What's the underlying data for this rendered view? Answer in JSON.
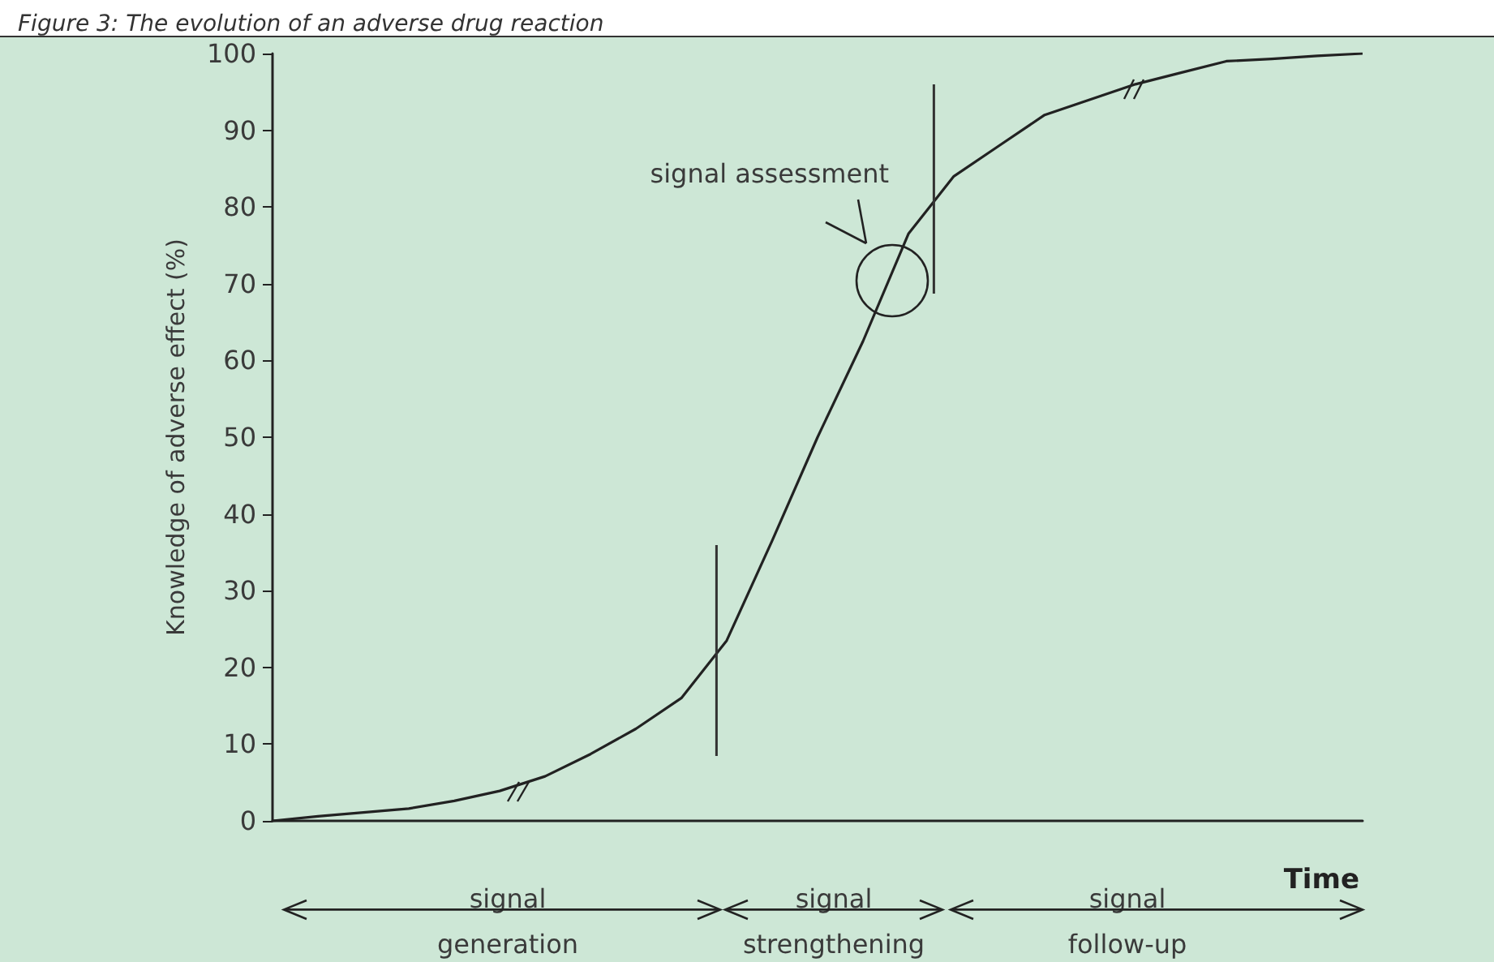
{
  "chart_data": {
    "type": "line",
    "title": "Figure 3: The evolution of an adverse drug reaction",
    "xlabel": "Time",
    "ylabel": "Knowledge of adverse effect (%)",
    "annotations": [
      "signal assessment",
      "signal\ngeneration",
      "signal\nstrengthening",
      "signal\nfollow-up"
    ],
    "categories": [
      null,
      null,
      null,
      null,
      null,
      null,
      null,
      null,
      null,
      null,
      null,
      null,
      null,
      null,
      null,
      null,
      null,
      null,
      null,
      null,
      null,
      null,
      null,
      null,
      null
    ],
    "series": [
      {
        "color": "#222222",
        "values": [
          0,
          0.6,
          1.1,
          1.6,
          2.6,
          3.9,
          5.8,
          8.7,
          12,
          16,
          23.5,
          36.5,
          50,
          62.5,
          76.5,
          84,
          88,
          92,
          94,
          96,
          97.5,
          99,
          99.3,
          99.7,
          100
        ]
      }
    ],
    "ylim": [
      0,
      100
    ],
    "yticks": [
      0,
      10,
      20,
      30,
      40,
      50,
      60,
      70,
      80,
      90,
      100
    ],
    "tick_labels": "y",
    "line_style": "solid"
  }
}
